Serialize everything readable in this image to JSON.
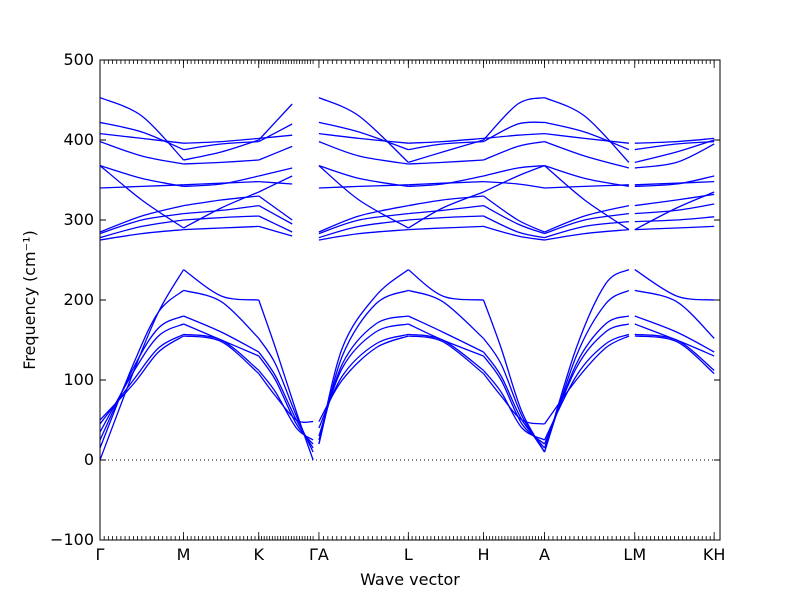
{
  "chart_data": {
    "type": "line",
    "title": "",
    "xlabel": "Wave vector",
    "ylabel": "Frequency (cm⁻¹)",
    "ylim": [
      -100,
      500
    ],
    "yticks": [
      -100,
      0,
      100,
      200,
      300,
      400,
      500
    ],
    "xlim": [
      0,
      7.42
    ],
    "xticks": [
      {
        "x": 0.0,
        "label": "Γ"
      },
      {
        "x": 1.0,
        "label": "M"
      },
      {
        "x": 1.9,
        "label": "K"
      },
      {
        "x": 2.62,
        "label": "ΓA"
      },
      {
        "x": 3.69,
        "label": "L"
      },
      {
        "x": 4.59,
        "label": "H"
      },
      {
        "x": 5.32,
        "label": "A"
      },
      {
        "x": 6.4,
        "label": "LM"
      },
      {
        "x": 7.35,
        "label": "KH"
      }
    ],
    "zero_line": {
      "y": 0,
      "style": "dotted"
    },
    "line_color": "#0000ff",
    "segments": [
      {
        "x0": 0.0,
        "x1": 1.0
      },
      {
        "x0": 1.0,
        "x1": 1.9
      },
      {
        "x0": 1.9,
        "x1": 2.55
      },
      {
        "x0": 2.62,
        "x1": 3.69
      },
      {
        "x0": 3.69,
        "x1": 4.59
      },
      {
        "x0": 4.59,
        "x1": 5.32
      },
      {
        "x0": 5.32,
        "x1": 6.33
      },
      {
        "x0": 6.4,
        "x1": 7.35
      }
    ],
    "series": [
      {
        "x": [
          0,
          0.4,
          0.7,
          1.0,
          1.45,
          1.9,
          2.1,
          2.35,
          2.55,
          2.62,
          2.9,
          3.3,
          3.69,
          4.1,
          4.59,
          4.8,
          5.05,
          5.32,
          5.7,
          6.05,
          6.33,
          6.4,
          6.9,
          7.35,
          7.42
        ],
        "values": [
          0,
          110,
          185,
          238,
          205,
          200,
          140,
          60,
          0,
          20,
          140,
          205,
          238,
          205,
          200,
          140,
          60,
          10,
          140,
          220,
          238,
          238,
          205,
          200,
          200
        ]
      },
      {
        "x": [
          0,
          0.4,
          0.7,
          1.0,
          1.45,
          1.9,
          2.1,
          2.35,
          2.55,
          2.62,
          2.9,
          3.3,
          3.69,
          4.1,
          4.59,
          4.8,
          5.05,
          5.32,
          5.7,
          6.05,
          6.33,
          6.4,
          6.9,
          7.35,
          7.42
        ],
        "values": [
          15,
          120,
          185,
          212,
          198,
          152,
          120,
          55,
          10,
          20,
          130,
          195,
          212,
          198,
          152,
          120,
          55,
          10,
          130,
          195,
          212,
          212,
          198,
          152,
          152
        ]
      },
      {
        "x": [
          0,
          0.4,
          0.7,
          1.0,
          1.45,
          1.9,
          2.1,
          2.35,
          2.55,
          2.62,
          2.9,
          3.3,
          3.69,
          4.1,
          4.59,
          4.8,
          5.05,
          5.32,
          5.7,
          6.05,
          6.33,
          6.4,
          6.9,
          7.35,
          7.42
        ],
        "values": [
          25,
          115,
          165,
          180,
          160,
          135,
          105,
          50,
          15,
          25,
          120,
          170,
          180,
          160,
          135,
          105,
          50,
          15,
          120,
          170,
          180,
          180,
          160,
          135,
          135
        ]
      },
      {
        "x": [
          0,
          0.4,
          0.7,
          1.0,
          1.45,
          1.9,
          2.1,
          2.35,
          2.55,
          2.62,
          2.9,
          3.3,
          3.69,
          4.1,
          4.59,
          4.8,
          5.05,
          5.32,
          5.7,
          6.05,
          6.33,
          6.4,
          6.9,
          7.35,
          7.42
        ],
        "values": [
          35,
          110,
          155,
          170,
          150,
          130,
          100,
          45,
          20,
          30,
          115,
          160,
          170,
          150,
          130,
          100,
          45,
          20,
          115,
          160,
          170,
          170,
          150,
          130,
          130
        ]
      },
      {
        "x": [
          0,
          0.4,
          0.7,
          1.0,
          1.45,
          1.9,
          2.1,
          2.35,
          2.55,
          2.62,
          2.9,
          3.3,
          3.69,
          4.1,
          4.59,
          4.8,
          5.05,
          5.32,
          5.7,
          6.05,
          6.33,
          6.4,
          6.9,
          7.35,
          7.42
        ],
        "values": [
          45,
          100,
          140,
          157,
          150,
          112,
          85,
          40,
          25,
          40,
          105,
          145,
          157,
          150,
          112,
          85,
          40,
          25,
          105,
          145,
          157,
          157,
          150,
          112,
          112
        ]
      },
      {
        "x": [
          0,
          0.4,
          0.7,
          1.0,
          1.45,
          1.9,
          2.1,
          2.35,
          2.55,
          2.62,
          2.9,
          3.3,
          3.69,
          4.1,
          4.59,
          4.8,
          5.05,
          5.32,
          5.7,
          6.05,
          6.33,
          6.4,
          6.9,
          7.35,
          7.42
        ],
        "values": [
          50,
          95,
          135,
          155,
          148,
          108,
          80,
          50,
          48,
          48,
          100,
          140,
          155,
          148,
          108,
          80,
          50,
          45,
          100,
          140,
          155,
          155,
          148,
          108,
          108
        ]
      },
      {
        "x": [
          0,
          0.5,
          1.0,
          1.45,
          1.9,
          2.3,
          2.62,
          3.1,
          3.69,
          4.1,
          4.59,
          5.0,
          5.32,
          5.8,
          6.33,
          6.4,
          6.9,
          7.35,
          7.42
        ],
        "values": [
          453,
          430,
          375,
          385,
          400,
          445,
          453,
          430,
          372,
          385,
          400,
          445,
          453,
          430,
          372,
          372,
          385,
          400,
          400
        ]
      },
      {
        "x": [
          0,
          0.5,
          1.0,
          1.45,
          1.9,
          2.3,
          2.62,
          3.1,
          3.69,
          4.1,
          4.59,
          5.0,
          5.32,
          5.8,
          6.33,
          6.4,
          6.9,
          7.35,
          7.42
        ],
        "values": [
          422,
          410,
          388,
          395,
          398,
          420,
          422,
          410,
          388,
          395,
          398,
          420,
          422,
          410,
          388,
          388,
          395,
          398,
          398
        ]
      },
      {
        "x": [
          0,
          0.5,
          1.0,
          1.45,
          1.9,
          2.3,
          2.62,
          3.1,
          3.69,
          4.1,
          4.59,
          5.0,
          5.32,
          5.8,
          6.33,
          6.4,
          6.9,
          7.35,
          7.42
        ],
        "values": [
          408,
          402,
          396,
          398,
          402,
          406,
          408,
          402,
          396,
          398,
          402,
          406,
          408,
          402,
          396,
          396,
          398,
          402,
          402
        ]
      },
      {
        "x": [
          0,
          0.5,
          1.0,
          1.45,
          1.9,
          2.3,
          2.62,
          3.1,
          3.69,
          4.1,
          4.59,
          5.0,
          5.32,
          5.8,
          6.33,
          6.4,
          6.9,
          7.35,
          7.42
        ],
        "values": [
          398,
          380,
          370,
          372,
          375,
          392,
          398,
          380,
          370,
          372,
          375,
          392,
          398,
          380,
          365,
          365,
          372,
          395,
          395
        ]
      },
      {
        "x": [
          0,
          0.5,
          1.0,
          1.45,
          1.9,
          2.3,
          2.62,
          3.1,
          3.69,
          4.1,
          4.59,
          5.0,
          5.32,
          5.8,
          6.33,
          6.4,
          6.9,
          7.35,
          7.42
        ],
        "values": [
          368,
          352,
          342,
          345,
          355,
          365,
          368,
          352,
          342,
          345,
          355,
          365,
          368,
          352,
          342,
          342,
          345,
          355,
          355
        ]
      },
      {
        "x": [
          0,
          0.5,
          1.0,
          1.45,
          1.9,
          2.3,
          2.62,
          3.1,
          3.69,
          4.1,
          4.59,
          5.0,
          5.32,
          5.8,
          6.33,
          6.4,
          6.9,
          7.35,
          7.42
        ],
        "values": [
          340,
          342,
          344,
          346,
          348,
          345,
          340,
          342,
          344,
          346,
          348,
          345,
          340,
          342,
          344,
          344,
          346,
          348,
          348
        ]
      },
      {
        "x": [
          0,
          0.5,
          1.0,
          1.45,
          1.9,
          2.3,
          2.62,
          3.1,
          3.69,
          4.1,
          4.59,
          5.0,
          5.32,
          5.8,
          6.33,
          6.4,
          6.9,
          7.35,
          7.42
        ],
        "values": [
          285,
          305,
          318,
          325,
          330,
          300,
          285,
          305,
          318,
          325,
          330,
          300,
          285,
          305,
          318,
          318,
          325,
          332,
          332
        ]
      },
      {
        "x": [
          0,
          0.5,
          1.0,
          1.45,
          1.9,
          2.3,
          2.62,
          3.1,
          3.69,
          4.1,
          4.59,
          5.0,
          5.32,
          5.8,
          6.33,
          6.4,
          6.9,
          7.35,
          7.42
        ],
        "values": [
          283,
          300,
          308,
          312,
          318,
          295,
          283,
          300,
          308,
          312,
          318,
          295,
          283,
          300,
          308,
          308,
          312,
          320,
          320
        ]
      },
      {
        "x": [
          0,
          0.5,
          1.0,
          1.45,
          1.9,
          2.3,
          2.62,
          3.1,
          3.69,
          4.1,
          4.59,
          5.0,
          5.32,
          5.8,
          6.33,
          6.4,
          6.9,
          7.35,
          7.42
        ],
        "values": [
          278,
          292,
          300,
          303,
          305,
          285,
          278,
          292,
          300,
          303,
          305,
          285,
          278,
          292,
          298,
          298,
          300,
          304,
          304
        ]
      },
      {
        "x": [
          0,
          0.5,
          1.0,
          1.45,
          1.9,
          2.3,
          2.62,
          3.1,
          3.69,
          4.1,
          4.59,
          5.0,
          5.32,
          5.8,
          6.33,
          6.4,
          6.9,
          7.35,
          7.42
        ],
        "values": [
          275,
          283,
          288,
          290,
          292,
          280,
          275,
          283,
          288,
          290,
          292,
          280,
          275,
          283,
          288,
          288,
          290,
          292,
          292
        ]
      },
      {
        "x": [
          0,
          0.5,
          1.0,
          1.45,
          1.9,
          2.3,
          2.62,
          3.1,
          3.69,
          4.1,
          4.59,
          5.0,
          5.32,
          5.8,
          6.33,
          6.4,
          6.9,
          7.35,
          7.42
        ],
        "values": [
          368,
          325,
          290,
          315,
          335,
          355,
          368,
          325,
          290,
          315,
          335,
          355,
          368,
          325,
          288,
          288,
          315,
          335,
          335
        ]
      }
    ]
  }
}
